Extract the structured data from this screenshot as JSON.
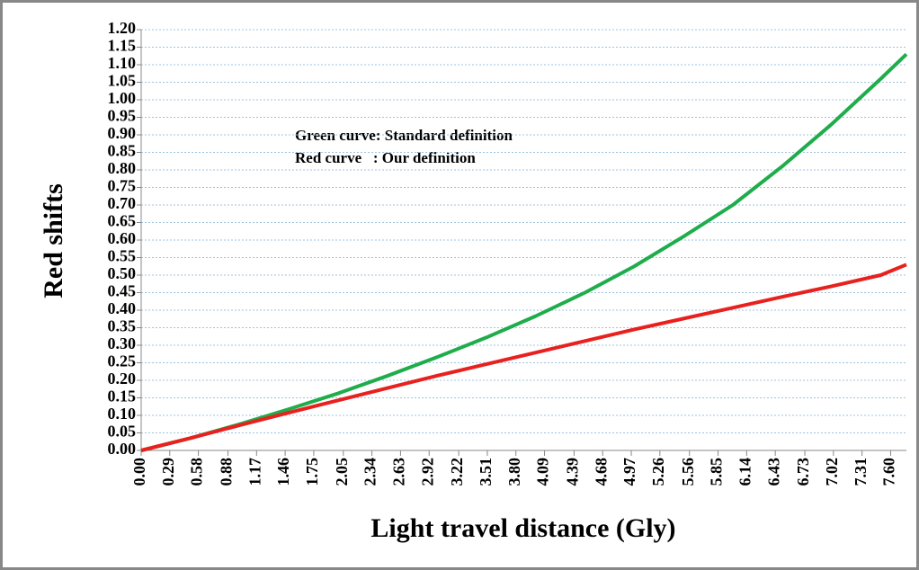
{
  "chart_data": {
    "type": "line",
    "xlabel": "Light travel distance (Gly)",
    "ylabel": "Red shifts",
    "annotations": [
      "Green curve: Standard definition",
      "Red curve   : Our definition"
    ],
    "x": [
      0,
      0.5,
      1,
      1.5,
      2,
      2.5,
      3,
      3.5,
      4,
      4.5,
      5,
      5.5,
      6,
      6.5,
      7,
      7.5,
      7.76
    ],
    "series": [
      {
        "color": "#1fad4b",
        "values": [
          0,
          0.035,
          0.075,
          0.118,
          0.163,
          0.213,
          0.266,
          0.322,
          0.383,
          0.45,
          0.525,
          0.61,
          0.7,
          0.81,
          0.93,
          1.06,
          1.13
        ]
      },
      {
        "color": "#e8211f",
        "values": [
          0,
          0.035,
          0.072,
          0.108,
          0.143,
          0.178,
          0.213,
          0.246,
          0.279,
          0.312,
          0.345,
          0.376,
          0.407,
          0.438,
          0.468,
          0.5,
          0.53
        ]
      }
    ],
    "xlim": [
      0,
      7.76
    ],
    "xticks": [
      {
        "value": 0,
        "label": "0.00"
      },
      {
        "value": 0.29,
        "label": "0.29"
      },
      {
        "value": 0.58,
        "label": "0.58"
      },
      {
        "value": 0.88,
        "label": "0.88"
      },
      {
        "value": 1.17,
        "label": "1.17"
      },
      {
        "value": 1.46,
        "label": "1.46"
      },
      {
        "value": 1.75,
        "label": "1.75"
      },
      {
        "value": 2.05,
        "label": "2.05"
      },
      {
        "value": 2.34,
        "label": "2.34"
      },
      {
        "value": 2.63,
        "label": "2.63"
      },
      {
        "value": 2.92,
        "label": "2.92"
      },
      {
        "value": 3.22,
        "label": "3.22"
      },
      {
        "value": 3.51,
        "label": "3.51"
      },
      {
        "value": 3.8,
        "label": "3.80"
      },
      {
        "value": 4.09,
        "label": "4.09"
      },
      {
        "value": 4.39,
        "label": "4.39"
      },
      {
        "value": 4.68,
        "label": "4.68"
      },
      {
        "value": 4.97,
        "label": "4.97"
      },
      {
        "value": 5.26,
        "label": "5.26"
      },
      {
        "value": 5.56,
        "label": "5.56"
      },
      {
        "value": 5.85,
        "label": "5.85"
      },
      {
        "value": 6.14,
        "label": "6.14"
      },
      {
        "value": 6.43,
        "label": "6.43"
      },
      {
        "value": 6.73,
        "label": "6.73"
      },
      {
        "value": 7.02,
        "label": "7.02"
      },
      {
        "value": 7.31,
        "label": "7.31"
      },
      {
        "value": 7.6,
        "label": "7.60"
      }
    ],
    "ylim": [
      0,
      1.2
    ],
    "yticks": [
      {
        "value": 0,
        "label": "0.00"
      },
      {
        "value": 0.05,
        "label": "0.05"
      },
      {
        "value": 0.1,
        "label": "0.10"
      },
      {
        "value": 0.15,
        "label": "0.15"
      },
      {
        "value": 0.2,
        "label": "0.20"
      },
      {
        "value": 0.25,
        "label": "0.25"
      },
      {
        "value": 0.3,
        "label": "0.30"
      },
      {
        "value": 0.35,
        "label": "0.35"
      },
      {
        "value": 0.4,
        "label": "0.40"
      },
      {
        "value": 0.45,
        "label": "0.45"
      },
      {
        "value": 0.5,
        "label": "0.50"
      },
      {
        "value": 0.55,
        "label": "0.55"
      },
      {
        "value": 0.6,
        "label": "0.60"
      },
      {
        "value": 0.65,
        "label": "0.65"
      },
      {
        "value": 0.7,
        "label": "0.70"
      },
      {
        "value": 0.75,
        "label": "0.75"
      },
      {
        "value": 0.8,
        "label": "0.80"
      },
      {
        "value": 0.85,
        "label": "0.85"
      },
      {
        "value": 0.9,
        "label": "0.90"
      },
      {
        "value": 0.95,
        "label": "0.95"
      },
      {
        "value": 1.0,
        "label": "1.00"
      },
      {
        "value": 1.05,
        "label": "1.05"
      },
      {
        "value": 1.1,
        "label": "1.10"
      },
      {
        "value": 1.15,
        "label": "1.15"
      },
      {
        "value": 1.2,
        "label": "1.20"
      }
    ],
    "grid": true
  }
}
